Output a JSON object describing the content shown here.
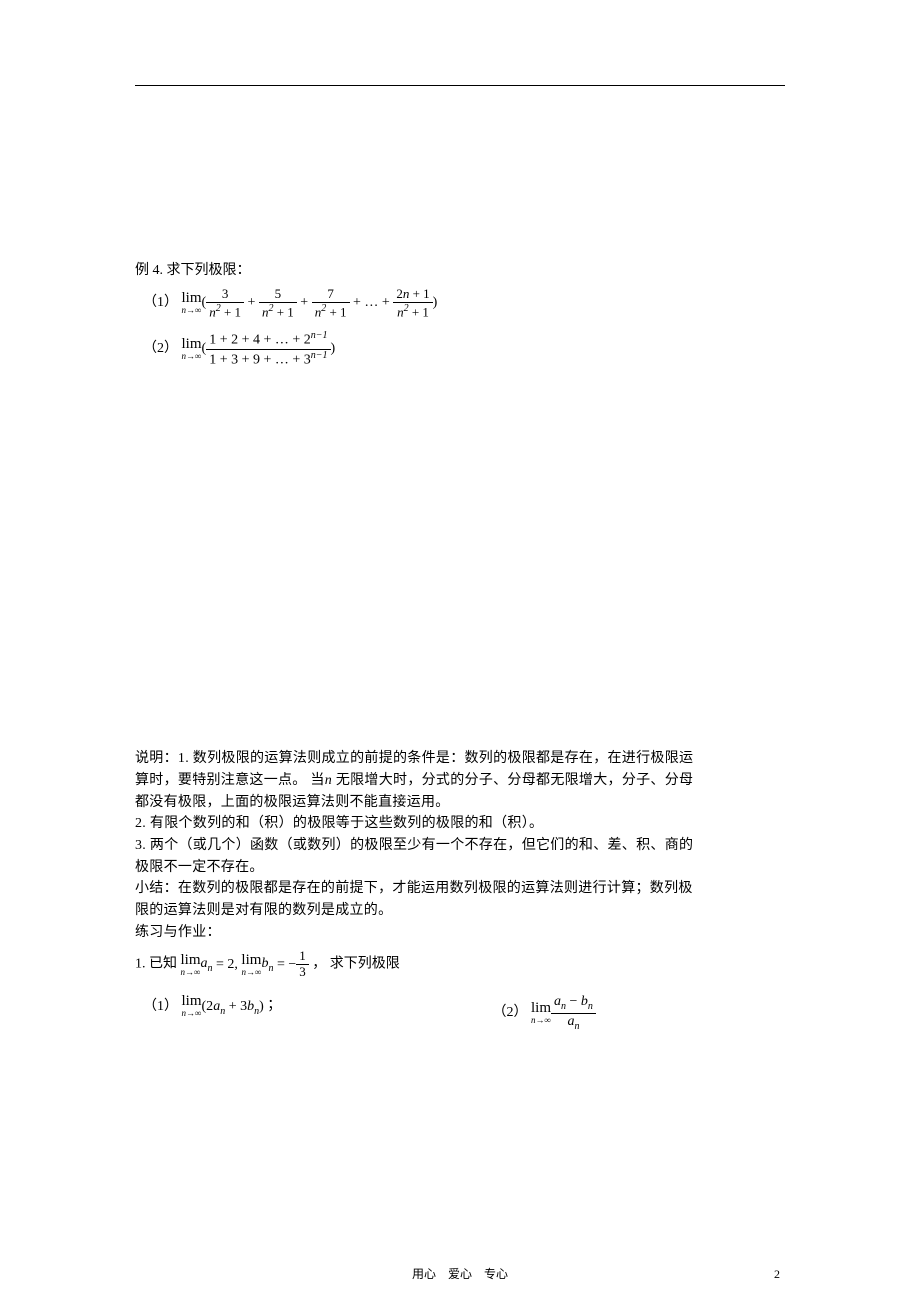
{
  "header": {
    "ex_label": "例 4. 求下列极限：",
    "item1_label": "（1）",
    "item2_label": "（2）"
  },
  "eq1": {
    "lim_top": "lim",
    "lim_bot": "n→∞",
    "open": "(",
    "close": ")",
    "t1_num": "3",
    "t1_den_l": "n",
    "t1_den_exp": "2",
    "t1_den_r": " + 1",
    "plus": " + ",
    "t2_num": "5",
    "t3_num": "7",
    "dots": " + … + ",
    "tn_num_l": "2",
    "tn_num_n": "n",
    "tn_num_r": " + 1"
  },
  "eq2": {
    "lim_top": "lim",
    "lim_bot": "n→∞",
    "open": "(",
    "close": ")",
    "num_a": "1 + 2 + 4 + … + 2",
    "num_exp": "n−1",
    "den_a": "1 + 3 + 9 + … + 3",
    "den_exp": "n−1"
  },
  "paras": {
    "p1a": "说明：1. 数列极限的运算法则成立的前提的条件是：数列的极限都是存在，在进行极限运",
    "p1b": "算时，要特别注意这一点。 当",
    "p1b_n": "n",
    "p1b2": " 无限增大时，分式的分子、分母都无限增大，分子、分母",
    "p1c": "都没有极限，上面的极限运算法则不能直接运用。",
    "p2": "2. 有限个数列的和（积）的极限等于这些数列的极限的和（积）。",
    "p3a": "3. 两个（或几个）函数（或数列）的极限至少有一个不存在，但它们的和、差、积、商的",
    "p3b": "极限不一定不存在。",
    "p4a": "小结：在数列的极限都是存在的前提下，才能运用数列极限的运算法则进行计算；数列极",
    "p4b": "限的运算法则是对有限的数列是成立的。",
    "p5": "练习与作业："
  },
  "q1": {
    "prefix": "1. 已知",
    "lim_top": "lim",
    "lim_bot": "n→∞",
    "a": "a",
    "n": "n",
    "eq2": " = 2, ",
    "b": "b",
    "eq_neg": " = −",
    "frac_num": "1",
    "frac_den": "3",
    "suffix": "， 求下列极限"
  },
  "q1items": {
    "i1_label": "（1）",
    "i1_open": "(2",
    "i1_a": "a",
    "i1_n": "n",
    "i1_plus": " + 3",
    "i1_b": "b",
    "i1_close": ")",
    "i1_semi": "；",
    "i2_label": "（2）",
    "i2_num_a": "a",
    "i2_num_n": "n",
    "i2_num_minus": " − ",
    "i2_num_b": "b",
    "i2_den_a": "a",
    "i2_den_n": "n"
  },
  "footer": {
    "text": "用心　爱心　专心",
    "page": "2"
  }
}
